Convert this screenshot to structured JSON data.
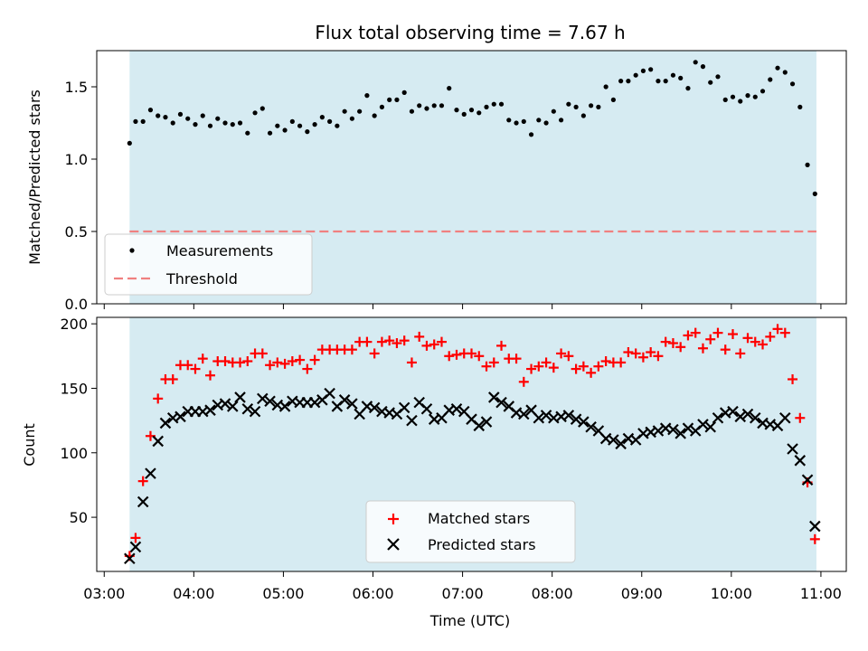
{
  "chart_data": [
    {
      "type": "scatter",
      "title": "Flux total observing time = 7.67 h",
      "xlabel": "",
      "ylabel": "Matched/Predicted stars",
      "ylim": [
        0,
        1.75
      ],
      "yticks": [
        "0.0",
        "0.5",
        "1.0",
        "1.5"
      ],
      "yticks_values": [
        0,
        0.5,
        1.0,
        1.5
      ],
      "observing_window": [
        "03:17",
        "10:57"
      ],
      "threshold": 0.5,
      "legend": {
        "placement": "lower-left",
        "entries": [
          "Measurements",
          "Threshold"
        ]
      },
      "series": [
        {
          "name": "Measurements",
          "color": "#000000",
          "marker": "dot",
          "x": [
            "03:17",
            "03:21",
            "03:26",
            "03:31",
            "03:36",
            "03:41",
            "03:46",
            "03:51",
            "03:56",
            "04:01",
            "04:06",
            "04:11",
            "04:16",
            "04:21",
            "04:26",
            "04:31",
            "04:36",
            "04:41",
            "04:46",
            "04:51",
            "04:56",
            "05:01",
            "05:06",
            "05:11",
            "05:16",
            "05:21",
            "05:26",
            "05:31",
            "05:36",
            "05:41",
            "05:46",
            "05:51",
            "05:56",
            "06:01",
            "06:06",
            "06:11",
            "06:16",
            "06:21",
            "06:26",
            "06:31",
            "06:36",
            "06:41",
            "06:46",
            "06:51",
            "06:56",
            "07:01",
            "07:06",
            "07:11",
            "07:16",
            "07:21",
            "07:26",
            "07:31",
            "07:36",
            "07:41",
            "07:46",
            "07:51",
            "07:56",
            "08:01",
            "08:06",
            "08:11",
            "08:16",
            "08:21",
            "08:26",
            "08:31",
            "08:36",
            "08:41",
            "08:46",
            "08:51",
            "08:56",
            "09:01",
            "09:06",
            "09:11",
            "09:16",
            "09:21",
            "09:26",
            "09:31",
            "09:36",
            "09:41",
            "09:46",
            "09:51",
            "09:56",
            "10:01",
            "10:06",
            "10:11",
            "10:16",
            "10:21",
            "10:26",
            "10:31",
            "10:36",
            "10:41",
            "10:46",
            "10:51",
            "10:56"
          ],
          "y": [
            1.11,
            1.26,
            1.26,
            1.34,
            1.3,
            1.29,
            1.25,
            1.31,
            1.28,
            1.24,
            1.3,
            1.23,
            1.28,
            1.25,
            1.24,
            1.25,
            1.18,
            1.32,
            1.35,
            1.18,
            1.23,
            1.2,
            1.26,
            1.23,
            1.19,
            1.24,
            1.29,
            1.26,
            1.23,
            1.33,
            1.28,
            1.33,
            1.44,
            1.3,
            1.36,
            1.41,
            1.41,
            1.46,
            1.33,
            1.37,
            1.35,
            1.37,
            1.37,
            1.49,
            1.34,
            1.31,
            1.34,
            1.32,
            1.36,
            1.38,
            1.38,
            1.27,
            1.25,
            1.26,
            1.17,
            1.27,
            1.25,
            1.33,
            1.27,
            1.38,
            1.36,
            1.3,
            1.37,
            1.36,
            1.5,
            1.41,
            1.54,
            1.54,
            1.58,
            1.61,
            1.62,
            1.54,
            1.54,
            1.58,
            1.56,
            1.49,
            1.67,
            1.64,
            1.53,
            1.57,
            1.41,
            1.43,
            1.4,
            1.44,
            1.43,
            1.47,
            1.55,
            1.63,
            1.6,
            1.52,
            1.36,
            0.96,
            0.76
          ]
        }
      ]
    },
    {
      "type": "scatter",
      "title": "",
      "xlabel": "Time (UTC)",
      "ylabel": "Count",
      "ylim": [
        8,
        205
      ],
      "yticks": [
        "50",
        "100",
        "150",
        "200"
      ],
      "yticks_values": [
        50,
        100,
        150,
        200
      ],
      "xlim": [
        "02:55",
        "11:17"
      ],
      "xticks": [
        "03:00",
        "04:00",
        "05:00",
        "06:00",
        "07:00",
        "08:00",
        "09:00",
        "10:00",
        "11:00"
      ],
      "observing_window": [
        "03:17",
        "10:57"
      ],
      "legend": {
        "placement": "lower-center",
        "entries": [
          "Matched stars",
          "Predicted stars"
        ]
      },
      "series": [
        {
          "name": "Matched stars",
          "color": "#ff0000",
          "marker": "plus",
          "x": [
            "03:17",
            "03:21",
            "03:26",
            "03:31",
            "03:36",
            "03:41",
            "03:46",
            "03:51",
            "03:56",
            "04:01",
            "04:06",
            "04:11",
            "04:16",
            "04:21",
            "04:26",
            "04:31",
            "04:36",
            "04:41",
            "04:46",
            "04:51",
            "04:56",
            "05:01",
            "05:06",
            "05:11",
            "05:16",
            "05:21",
            "05:26",
            "05:31",
            "05:36",
            "05:41",
            "05:46",
            "05:51",
            "05:56",
            "06:01",
            "06:06",
            "06:11",
            "06:16",
            "06:21",
            "06:26",
            "06:31",
            "06:36",
            "06:41",
            "06:46",
            "06:51",
            "06:56",
            "07:01",
            "07:06",
            "07:11",
            "07:16",
            "07:21",
            "07:26",
            "07:31",
            "07:36",
            "07:41",
            "07:46",
            "07:51",
            "07:56",
            "08:01",
            "08:06",
            "08:11",
            "08:16",
            "08:21",
            "08:26",
            "08:31",
            "08:36",
            "08:41",
            "08:46",
            "08:51",
            "08:56",
            "09:01",
            "09:06",
            "09:11",
            "09:16",
            "09:21",
            "09:26",
            "09:31",
            "09:36",
            "09:41",
            "09:46",
            "09:51",
            "09:56",
            "10:01",
            "10:06",
            "10:11",
            "10:16",
            "10:21",
            "10:26",
            "10:31",
            "10:36",
            "10:41",
            "10:46",
            "10:51",
            "10:56"
          ],
          "y": [
            20,
            34,
            78,
            113,
            142,
            157,
            157,
            168,
            168,
            165,
            173,
            160,
            171,
            171,
            170,
            170,
            171,
            177,
            177,
            168,
            170,
            169,
            171,
            172,
            165,
            172,
            180,
            180,
            180,
            180,
            180,
            186,
            186,
            177,
            186,
            187,
            185,
            187,
            170,
            190,
            183,
            184,
            186,
            175,
            176,
            177,
            177,
            175,
            167,
            170,
            183,
            173,
            173,
            155,
            165,
            167,
            170,
            166,
            177,
            175,
            165,
            167,
            162,
            167,
            171,
            170,
            170,
            178,
            177,
            174,
            178,
            175,
            186,
            185,
            182,
            191,
            193,
            181,
            188,
            193,
            180,
            192,
            177,
            189,
            186,
            184,
            190,
            196,
            193,
            157,
            127,
            77,
            33
          ]
        },
        {
          "name": "Predicted stars",
          "color": "#000000",
          "marker": "x",
          "x": [
            "03:17",
            "03:21",
            "03:26",
            "03:31",
            "03:36",
            "03:41",
            "03:46",
            "03:51",
            "03:56",
            "04:01",
            "04:06",
            "04:11",
            "04:16",
            "04:21",
            "04:26",
            "04:31",
            "04:36",
            "04:41",
            "04:46",
            "04:51",
            "04:56",
            "05:01",
            "05:06",
            "05:11",
            "05:16",
            "05:21",
            "05:26",
            "05:31",
            "05:36",
            "05:41",
            "05:46",
            "05:51",
            "05:56",
            "06:01",
            "06:06",
            "06:11",
            "06:16",
            "06:21",
            "06:26",
            "06:31",
            "06:36",
            "06:41",
            "06:46",
            "06:51",
            "06:56",
            "07:01",
            "07:06",
            "07:11",
            "07:16",
            "07:21",
            "07:26",
            "07:31",
            "07:36",
            "07:41",
            "07:46",
            "07:51",
            "07:56",
            "08:01",
            "08:06",
            "08:11",
            "08:16",
            "08:21",
            "08:26",
            "08:31",
            "08:36",
            "08:41",
            "08:46",
            "08:51",
            "08:56",
            "09:01",
            "09:06",
            "09:11",
            "09:16",
            "09:21",
            "09:26",
            "09:31",
            "09:36",
            "09:41",
            "09:46",
            "09:51",
            "09:56",
            "10:01",
            "10:06",
            "10:11",
            "10:16",
            "10:21",
            "10:26",
            "10:31",
            "10:36",
            "10:41",
            "10:46",
            "10:51",
            "10:56"
          ],
          "y": [
            18,
            27,
            62,
            84,
            109,
            123,
            127,
            128,
            132,
            132,
            132,
            133,
            137,
            138,
            136,
            143,
            134,
            132,
            142,
            140,
            137,
            136,
            140,
            139,
            139,
            139,
            141,
            146,
            136,
            141,
            138,
            130,
            136,
            135,
            132,
            131,
            130,
            135,
            125,
            139,
            134,
            126,
            127,
            133,
            134,
            132,
            126,
            121,
            124,
            143,
            139,
            136,
            131,
            130,
            133,
            127,
            129,
            127,
            128,
            129,
            126,
            124,
            120,
            117,
            111,
            110,
            107,
            111,
            110,
            115,
            116,
            117,
            119,
            118,
            115,
            119,
            117,
            122,
            120,
            127,
            131,
            132,
            128,
            130,
            127,
            123,
            122,
            121,
            127,
            103,
            94,
            79,
            43
          ]
        }
      ]
    }
  ]
}
